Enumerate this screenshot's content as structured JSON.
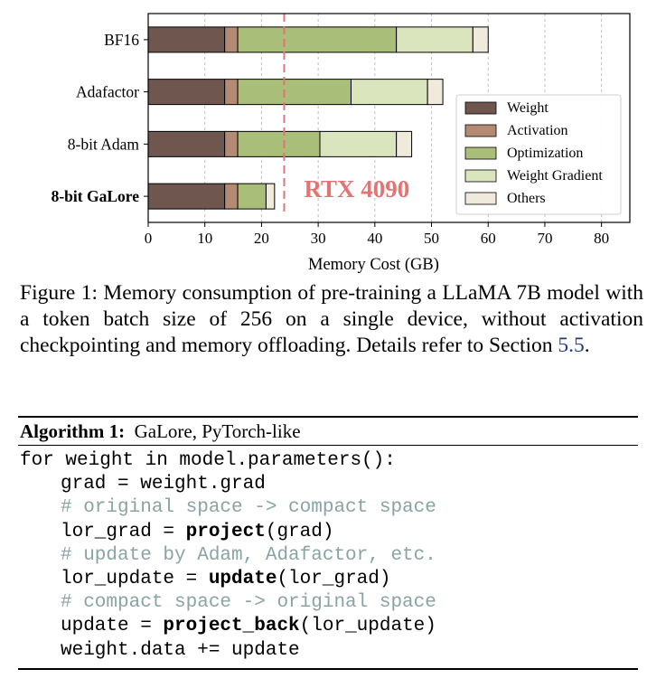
{
  "chart_data": {
    "type": "bar",
    "orientation": "horizontal",
    "stacked": true,
    "categories": [
      "BF16",
      "Adafactor",
      "8-bit Adam",
      "8-bit GaLore"
    ],
    "bold_categories": [
      "8-bit GaLore"
    ],
    "series": [
      {
        "name": "Weight",
        "color": "#6f5750",
        "values": [
          13.5,
          13.5,
          13.5,
          13.5
        ]
      },
      {
        "name": "Activation",
        "color": "#b58a72",
        "values": [
          2.3,
          2.3,
          2.3,
          2.3
        ]
      },
      {
        "name": "Optimization",
        "color": "#a9bf79",
        "values": [
          28.0,
          20.0,
          14.5,
          5.0
        ]
      },
      {
        "name": "Weight Gradient",
        "color": "#dbe5bd",
        "values": [
          13.5,
          13.5,
          13.5,
          0.0
        ]
      },
      {
        "name": "Others",
        "color": "#efeadb",
        "values": [
          2.7,
          2.7,
          2.7,
          1.5
        ]
      }
    ],
    "xlabel": "Memory Cost (GB)",
    "ylabel": "",
    "xlim": [
      0,
      85
    ],
    "xticks": [
      0,
      10,
      20,
      30,
      40,
      50,
      60,
      70,
      80
    ],
    "grid": "vertical dashed",
    "legend_position": "lower-right",
    "reference_line": {
      "value": 24,
      "label": "RTX 4090",
      "color": "#e57373",
      "style": "dashed"
    }
  },
  "caption": {
    "prefix": "Figure 1:  Memory consumption of pre-training a LLaMA 7B model with a token batch size of 256 on a single device, without activation checkpointing and memory offloading. Details refer to Section ",
    "ref": "5.5",
    "suffix": "."
  },
  "algorithm": {
    "label": "Algorithm 1:",
    "title": "GaLore, PyTorch-like",
    "lines": [
      {
        "indent": false,
        "parts": [
          {
            "t": "for weight in model.parameters():",
            "s": ""
          }
        ]
      },
      {
        "indent": true,
        "parts": [
          {
            "t": "grad = weight.grad",
            "s": ""
          }
        ]
      },
      {
        "indent": true,
        "parts": [
          {
            "t": "# original space -> compact space",
            "s": "comment"
          }
        ]
      },
      {
        "indent": true,
        "parts": [
          {
            "t": "lor_grad = ",
            "s": ""
          },
          {
            "t": "project",
            "s": "kw"
          },
          {
            "t": "(grad)",
            "s": ""
          }
        ]
      },
      {
        "indent": true,
        "parts": [
          {
            "t": "# update by Adam, Adafactor, etc.",
            "s": "comment"
          }
        ]
      },
      {
        "indent": true,
        "parts": [
          {
            "t": "lor_update = ",
            "s": ""
          },
          {
            "t": "update",
            "s": "kw"
          },
          {
            "t": "(lor_grad)",
            "s": ""
          }
        ]
      },
      {
        "indent": true,
        "parts": [
          {
            "t": "# compact space -> original space",
            "s": "comment"
          }
        ]
      },
      {
        "indent": true,
        "parts": [
          {
            "t": "update = ",
            "s": ""
          },
          {
            "t": "project_back",
            "s": "kw"
          },
          {
            "t": "(lor_update)",
            "s": ""
          }
        ]
      },
      {
        "indent": true,
        "parts": [
          {
            "t": "weight.data += update",
            "s": ""
          }
        ]
      }
    ]
  }
}
